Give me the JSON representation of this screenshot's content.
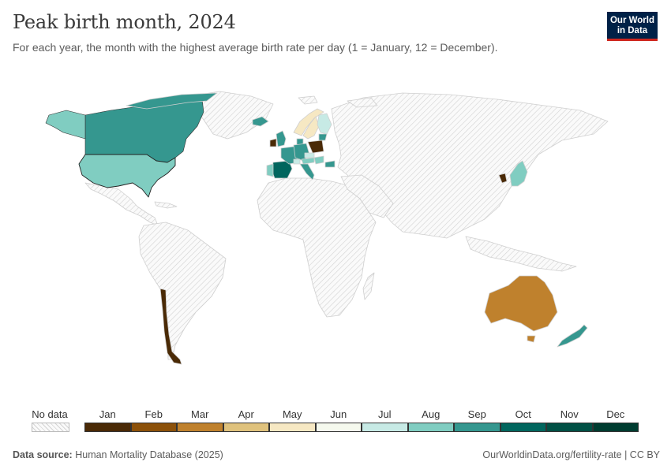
{
  "header": {
    "title": "Peak birth month, 2024",
    "subtitle": "For each year, the month with the highest average birth rate per day (1 = January, 12 = December)."
  },
  "logo": {
    "line1": "Our World",
    "line2": "in Data"
  },
  "legend": {
    "no_data_label": "No data",
    "months": [
      {
        "label": "Jan",
        "color": "#4a2a06"
      },
      {
        "label": "Feb",
        "color": "#8c510a"
      },
      {
        "label": "Mar",
        "color": "#bf812d"
      },
      {
        "label": "Apr",
        "color": "#dfc27d"
      },
      {
        "label": "May",
        "color": "#f6e8c3"
      },
      {
        "label": "Jun",
        "color": "#f5f9ee"
      },
      {
        "label": "Jul",
        "color": "#c7eae5"
      },
      {
        "label": "Aug",
        "color": "#80cdc1"
      },
      {
        "label": "Sep",
        "color": "#35978f"
      },
      {
        "label": "Oct",
        "color": "#01665e"
      },
      {
        "label": "Nov",
        "color": "#015045"
      },
      {
        "label": "Dec",
        "color": "#003c30"
      }
    ]
  },
  "map_data": {
    "year": 2024,
    "countries": [
      {
        "name": "United States",
        "month": 8
      },
      {
        "name": "Canada",
        "month": 9
      },
      {
        "name": "Chile",
        "month": 1
      },
      {
        "name": "Australia",
        "month": 3
      },
      {
        "name": "New Zealand",
        "month": 9
      },
      {
        "name": "Japan",
        "month": 8
      },
      {
        "name": "South Korea",
        "month": 1
      },
      {
        "name": "Spain",
        "month": 10
      },
      {
        "name": "Portugal",
        "month": 8
      },
      {
        "name": "France",
        "month": 9
      },
      {
        "name": "United Kingdom",
        "month": 9
      },
      {
        "name": "Ireland",
        "month": 1
      },
      {
        "name": "Iceland",
        "month": 9
      },
      {
        "name": "Norway",
        "month": 5
      },
      {
        "name": "Sweden",
        "month": 5
      },
      {
        "name": "Finland",
        "month": 7
      },
      {
        "name": "Denmark",
        "month": 9
      },
      {
        "name": "Netherlands",
        "month": 9
      },
      {
        "name": "Belgium",
        "month": 9
      },
      {
        "name": "Germany",
        "month": 9
      },
      {
        "name": "Poland",
        "month": 1
      },
      {
        "name": "Lithuania",
        "month": 9
      },
      {
        "name": "Czechia",
        "month": 7
      },
      {
        "name": "Austria",
        "month": 8
      },
      {
        "name": "Switzerland",
        "month": 7
      },
      {
        "name": "Italy",
        "month": 9
      },
      {
        "name": "Slovenia",
        "month": 9
      },
      {
        "name": "Croatia",
        "month": 9
      },
      {
        "name": "Hungary",
        "month": 8
      },
      {
        "name": "Bulgaria",
        "month": 9
      },
      {
        "name": "Greenland (no data)",
        "month": null
      }
    ]
  },
  "footer": {
    "source_label": "Data source:",
    "source": "Human Mortality Database (2025)",
    "url": "OurWorldinData.org/fertility-rate | CC BY"
  }
}
